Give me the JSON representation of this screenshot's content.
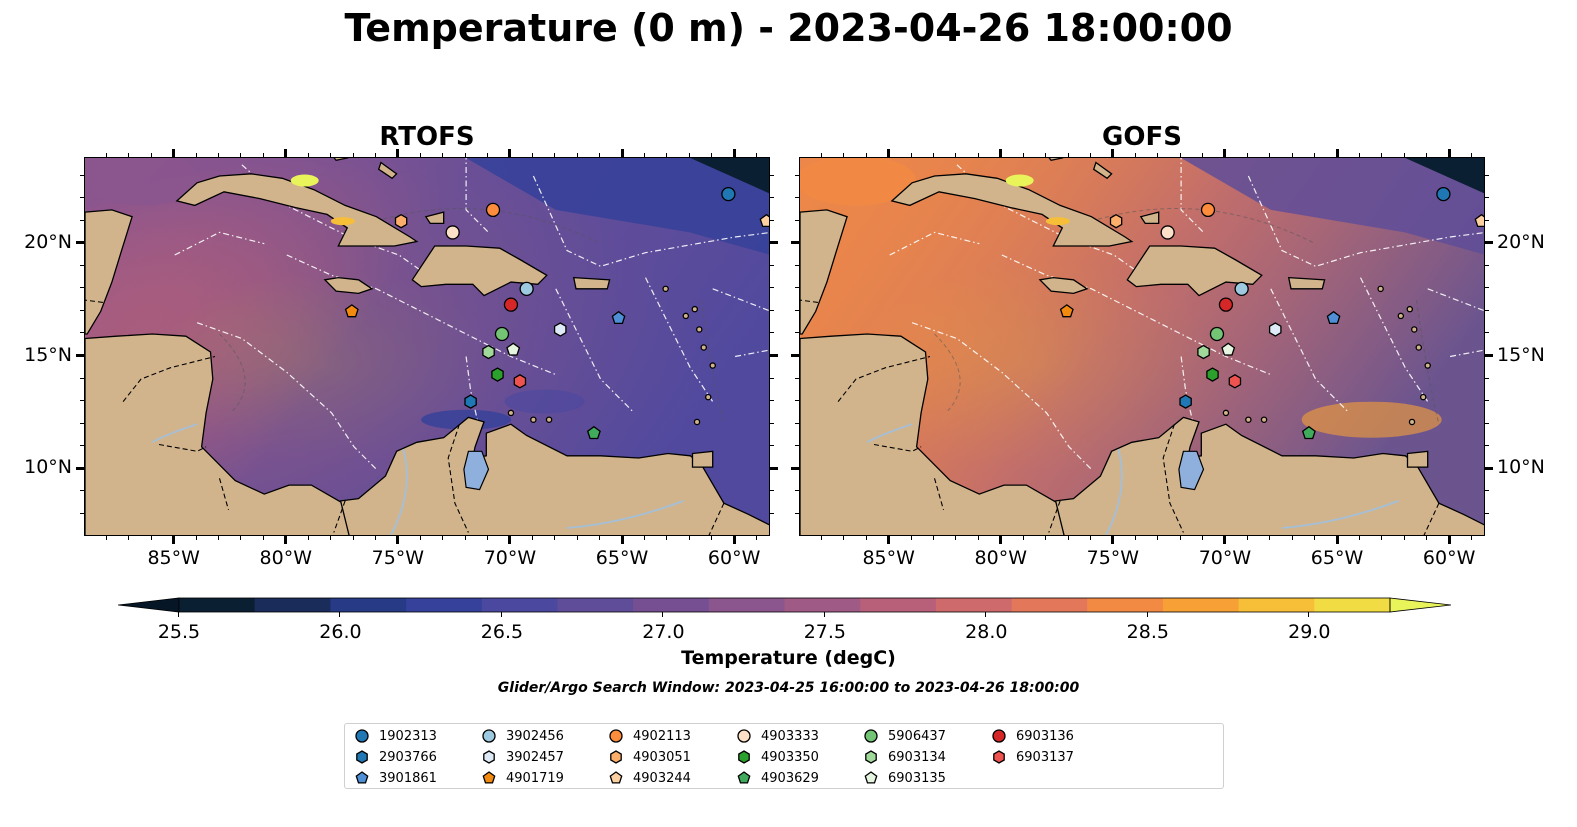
{
  "title": "Temperature (0 m) - 2023-04-26 18:00:00",
  "panels": [
    {
      "title": "RTOFS"
    },
    {
      "title": "GOFS"
    }
  ],
  "x_ticks": [
    "85°W",
    "80°W",
    "75°W",
    "70°W",
    "65°W",
    "60°W"
  ],
  "x_tick_lons": [
    -85,
    -80,
    -75,
    -70,
    -65,
    -60
  ],
  "y_ticks": [
    "20°N",
    "15°N",
    "10°N"
  ],
  "y_tick_lats": [
    20,
    15,
    10
  ],
  "extent": {
    "lon_min": -89,
    "lon_max": -58.4,
    "lat_min": 7,
    "lat_max": 23.8
  },
  "colorbar": {
    "label": "Temperature (degC)",
    "ticks": [
      "25.5",
      "26.0",
      "26.5",
      "27.0",
      "27.5",
      "28.0",
      "28.5",
      "29.0"
    ],
    "tick_values": [
      25.5,
      26.0,
      26.5,
      27.0,
      27.5,
      28.0,
      28.5,
      29.0
    ],
    "min": 25.5,
    "max": 29.25,
    "extend": "both",
    "colors": [
      "#0b1f32",
      "#1a2c5a",
      "#263a86",
      "#35419a",
      "#4b48a0",
      "#5f4d99",
      "#754f92",
      "#8b558e",
      "#a05a86",
      "#b85f7a",
      "#ce6a6c",
      "#e3775a",
      "#f28a44",
      "#f7a035",
      "#f7be38",
      "#f1dd43"
    ],
    "under_color": "#061626",
    "over_color": "#e8f45a"
  },
  "search_window": "Glider/Argo Search Window: 2023-04-25 16:00:00 to 2023-04-26 18:00:00",
  "floats": [
    {
      "id": "1902313",
      "marker": "circle",
      "color": "#1f77b4",
      "lon": -60.3,
      "lat": 22.2
    },
    {
      "id": "2903766",
      "marker": "hexagon",
      "color": "#1f77b4",
      "lon": -71.8,
      "lat": 13.0
    },
    {
      "id": "3901861",
      "marker": "pentagon",
      "color": "#4e8fd6",
      "lon": -65.2,
      "lat": 16.7
    },
    {
      "id": "3902456",
      "marker": "circle",
      "color": "#9ecae1",
      "lon": -69.3,
      "lat": 18.0
    },
    {
      "id": "3902457",
      "marker": "hexagon",
      "color": "#deebf7",
      "lon": -67.8,
      "lat": 16.2
    },
    {
      "id": "4901719",
      "marker": "pentagon",
      "color": "#f28a10",
      "lon": -77.1,
      "lat": 17.0
    },
    {
      "id": "4902113",
      "marker": "circle",
      "color": "#fd8d3c",
      "lon": -70.8,
      "lat": 21.5
    },
    {
      "id": "4903051",
      "marker": "hexagon",
      "color": "#fdae6b",
      "lon": -74.9,
      "lat": 21.0
    },
    {
      "id": "4903244",
      "marker": "pentagon",
      "color": "#fdd0a2",
      "lon": -58.6,
      "lat": 21.0
    },
    {
      "id": "4903333",
      "marker": "circle",
      "color": "#fde0c8",
      "lon": -72.6,
      "lat": 20.5
    },
    {
      "id": "4903350",
      "marker": "hexagon",
      "color": "#2ca02c",
      "lon": -70.6,
      "lat": 14.2
    },
    {
      "id": "4903629",
      "marker": "pentagon",
      "color": "#41ab5d",
      "lon": -66.3,
      "lat": 11.6
    },
    {
      "id": "5906437",
      "marker": "circle",
      "color": "#74c476",
      "lon": -70.4,
      "lat": 16.0
    },
    {
      "id": "6903134",
      "marker": "hexagon",
      "color": "#a1d99b",
      "lon": -71.0,
      "lat": 15.2
    },
    {
      "id": "6903135",
      "marker": "pentagon",
      "color": "#e5f5e0",
      "lon": -69.9,
      "lat": 15.3
    },
    {
      "id": "6903136",
      "marker": "circle",
      "color": "#d62728",
      "lon": -70.0,
      "lat": 17.3
    },
    {
      "id": "6903137",
      "marker": "hexagon",
      "color": "#ef5350",
      "lon": -69.6,
      "lat": 13.9
    }
  ],
  "map_colors": {
    "land": "#d2b48c",
    "lake": "#8fb0dd",
    "river": "#a4bfd8"
  }
}
